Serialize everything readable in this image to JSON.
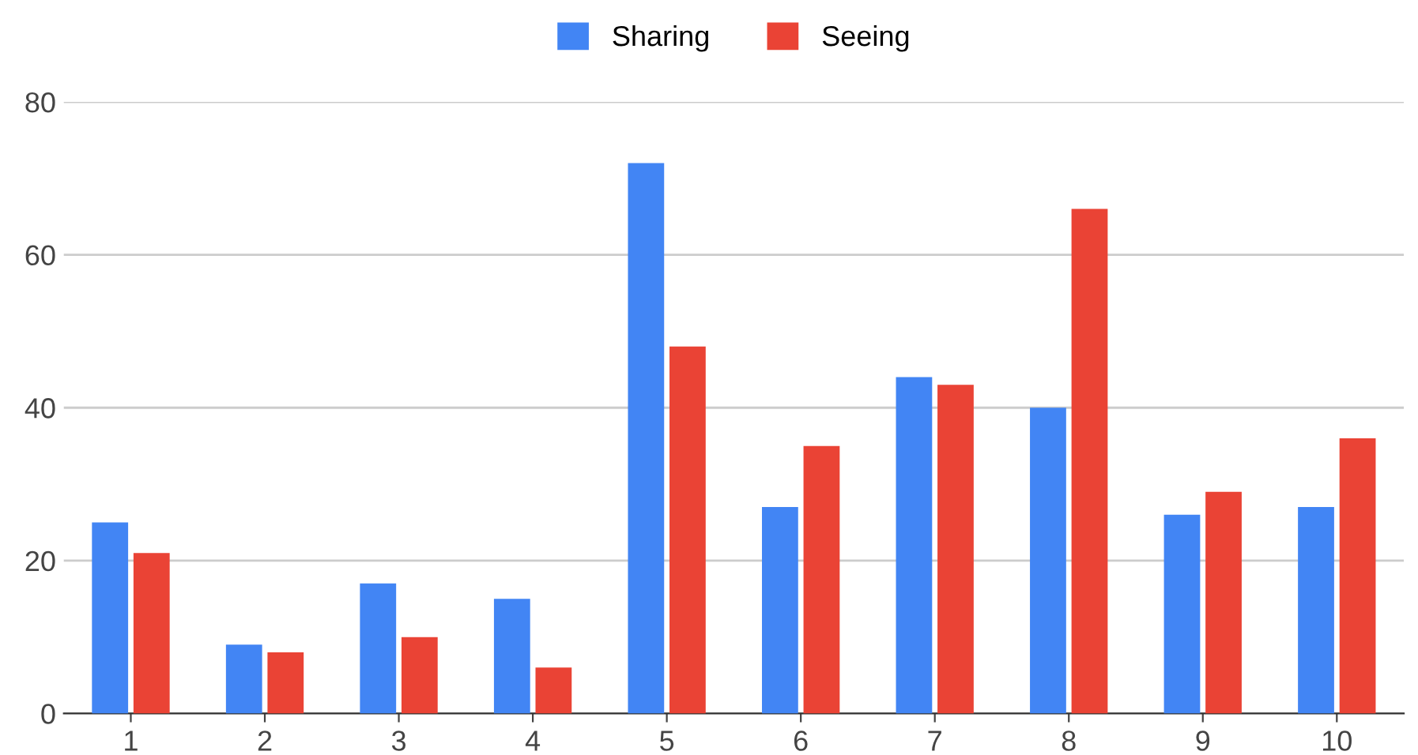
{
  "chart_data": {
    "type": "bar",
    "categories": [
      "1",
      "2",
      "3",
      "4",
      "5",
      "6",
      "7",
      "8",
      "9",
      "10"
    ],
    "series": [
      {
        "name": "Sharing",
        "color": "#4285f4",
        "values": [
          25,
          9,
          17,
          15,
          72,
          27,
          44,
          40,
          26,
          27
        ]
      },
      {
        "name": "Seeing",
        "color": "#ea4335",
        "values": [
          21,
          8,
          10,
          6,
          48,
          35,
          43,
          66,
          29,
          36
        ]
      }
    ],
    "ylim": [
      0,
      80
    ],
    "yticks": [
      0,
      20,
      40,
      60,
      80
    ],
    "grid": "y",
    "legend": "top"
  }
}
